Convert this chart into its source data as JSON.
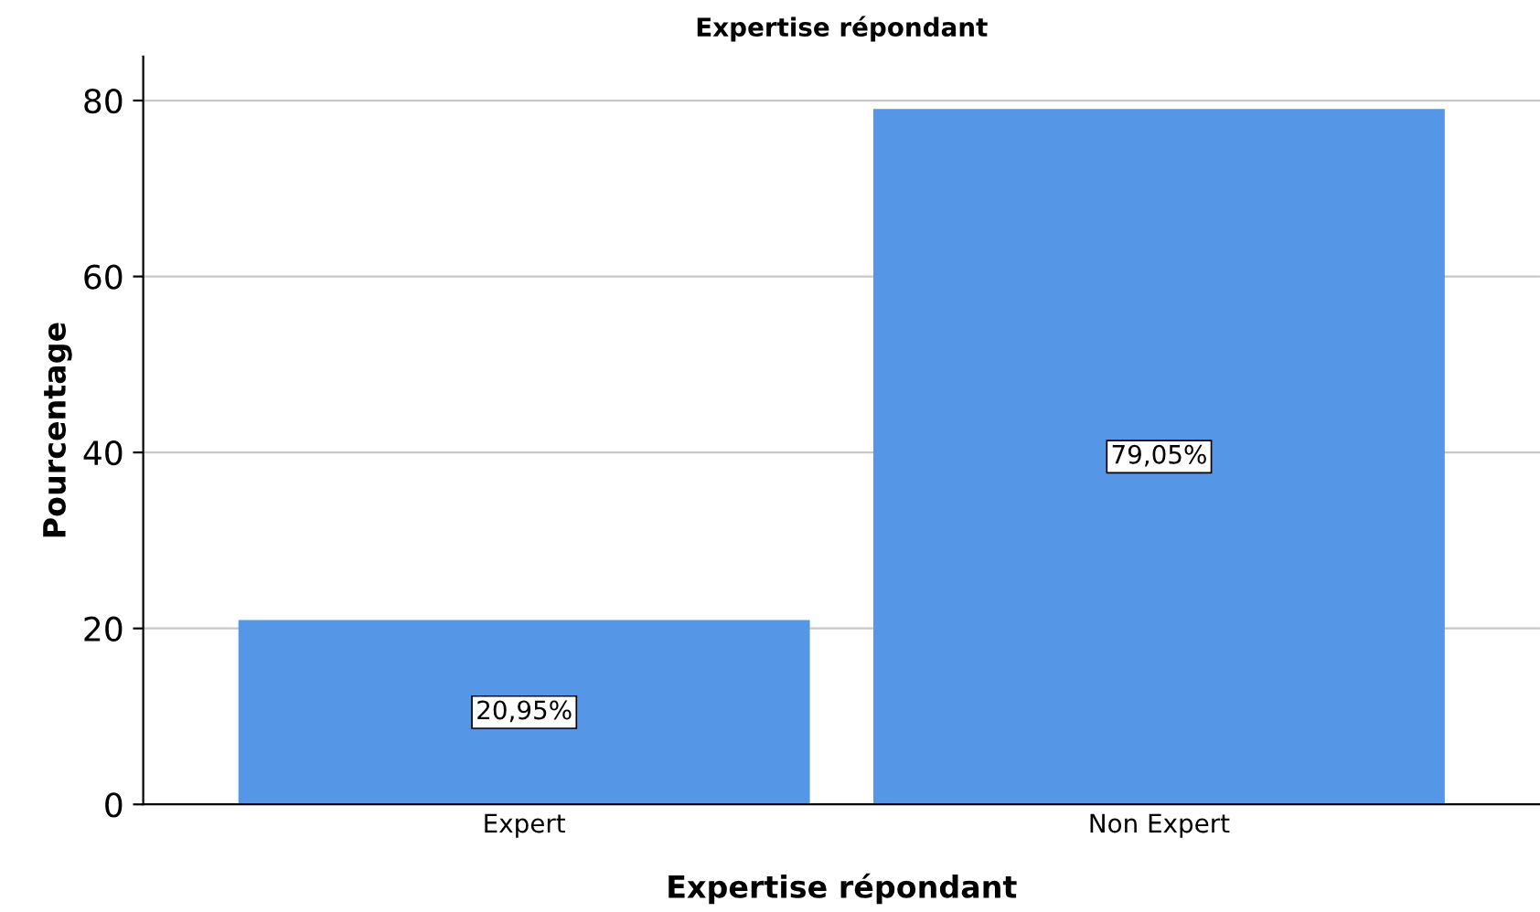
{
  "chart_data": {
    "type": "bar",
    "title": "Expertise répondant",
    "xlabel": "Expertise répondant",
    "ylabel": "Pourcentage",
    "categories": [
      "Expert",
      "Non Expert"
    ],
    "values": [
      20.95,
      79.05
    ],
    "value_labels": [
      "20,95%",
      "79,05%"
    ],
    "color": "#5596e6",
    "ylim": [
      0,
      85
    ],
    "yticks": [
      0,
      20,
      40,
      60,
      80
    ],
    "grid": "y"
  }
}
